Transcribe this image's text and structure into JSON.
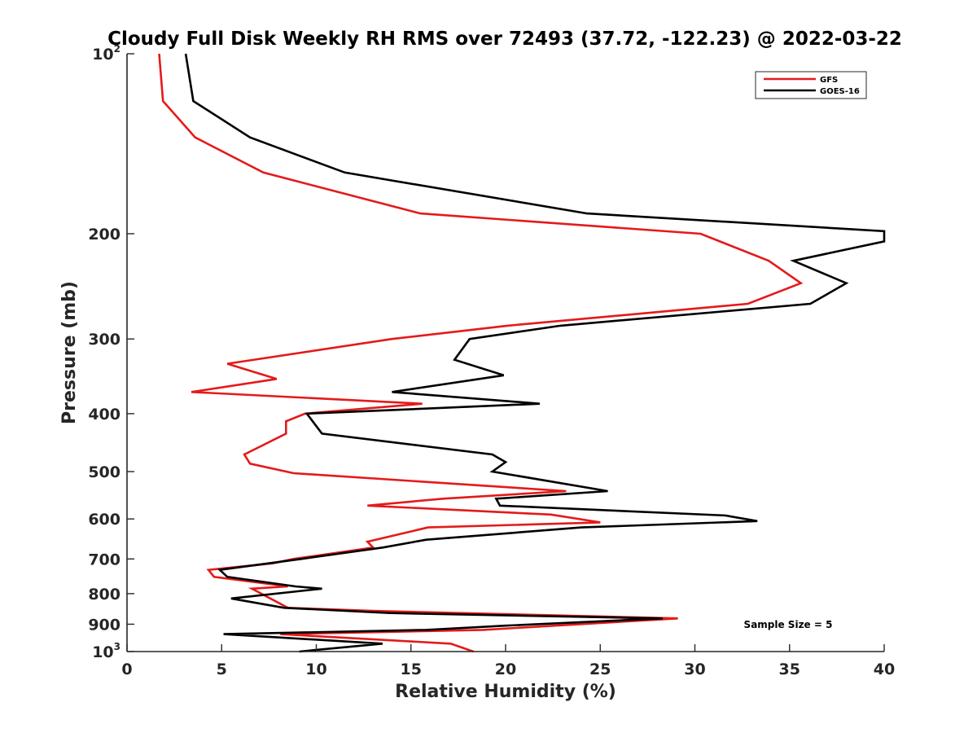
{
  "chart_data": {
    "type": "line",
    "title": "Cloudy Full Disk Weekly RH RMS over 72493 (37.72, -122.23) @ 2022-03-22",
    "xlabel": "Relative Humidity (%)",
    "ylabel": "Pressure (mb)",
    "xlim": [
      0,
      40
    ],
    "ylim": [
      1000,
      100
    ],
    "yscale": "log",
    "x_ticks": [
      0,
      5,
      10,
      15,
      20,
      25,
      30,
      35,
      40
    ],
    "y_ticks": [
      {
        "value": 100,
        "base": "10",
        "exp": "2"
      },
      {
        "value": 200,
        "label": "200"
      },
      {
        "value": 300,
        "label": "300"
      },
      {
        "value": 400,
        "label": "400"
      },
      {
        "value": 500,
        "label": "500"
      },
      {
        "value": 600,
        "label": "600"
      },
      {
        "value": 700,
        "label": "700"
      },
      {
        "value": 800,
        "label": "800"
      },
      {
        "value": 900,
        "label": "900"
      },
      {
        "value": 1000,
        "base": "10",
        "exp": "3"
      }
    ],
    "grid": false,
    "legend_position": "top-right",
    "annotation": "Sample Size = 5",
    "series": [
      {
        "name": "GFS",
        "color": "#e41a1a",
        "points": [
          [
            1.7,
            100
          ],
          [
            1.9,
            120
          ],
          [
            3.6,
            138
          ],
          [
            7.2,
            158
          ],
          [
            15.5,
            185
          ],
          [
            30.3,
            200
          ],
          [
            33.9,
            222
          ],
          [
            35.6,
            242
          ],
          [
            32.8,
            262
          ],
          [
            20.1,
            285
          ],
          [
            14.0,
            300
          ],
          [
            5.3,
            330
          ],
          [
            7.9,
            350
          ],
          [
            3.4,
            368
          ],
          [
            15.6,
            385
          ],
          [
            9.4,
            400
          ],
          [
            8.4,
            412
          ],
          [
            8.4,
            432
          ],
          [
            6.2,
            468
          ],
          [
            6.5,
            485
          ],
          [
            8.8,
            503
          ],
          [
            23.2,
            539
          ],
          [
            16.7,
            555
          ],
          [
            12.7,
            570
          ],
          [
            22.4,
            590
          ],
          [
            25.0,
            608
          ],
          [
            15.9,
            620
          ],
          [
            12.7,
            655
          ],
          [
            13.0,
            670
          ],
          [
            8.8,
            700
          ],
          [
            7.7,
            712
          ],
          [
            4.3,
            730
          ],
          [
            4.6,
            750
          ],
          [
            8.5,
            778
          ],
          [
            6.6,
            785
          ],
          [
            8.5,
            845
          ],
          [
            13.0,
            855
          ],
          [
            29.1,
            880
          ],
          [
            18.8,
            920
          ],
          [
            8.1,
            935
          ],
          [
            17.1,
            970
          ],
          [
            18.3,
            1000
          ]
        ]
      },
      {
        "name": "GOES-16",
        "color": "#000000",
        "points": [
          [
            3.1,
            100
          ],
          [
            3.5,
            120
          ],
          [
            6.5,
            138
          ],
          [
            11.5,
            158
          ],
          [
            24.3,
            185
          ],
          [
            40.0,
            198
          ],
          [
            40.0,
            206
          ],
          [
            35.2,
            222
          ],
          [
            38.0,
            242
          ],
          [
            36.1,
            262
          ],
          [
            22.9,
            285
          ],
          [
            18.1,
            300
          ],
          [
            17.3,
            325
          ],
          [
            19.9,
            345
          ],
          [
            14.0,
            368
          ],
          [
            21.8,
            385
          ],
          [
            9.5,
            400
          ],
          [
            10.3,
            432
          ],
          [
            19.3,
            468
          ],
          [
            20.0,
            482
          ],
          [
            19.3,
            500
          ],
          [
            25.4,
            539
          ],
          [
            19.5,
            555
          ],
          [
            19.7,
            570
          ],
          [
            31.6,
            592
          ],
          [
            33.3,
            605
          ],
          [
            24.0,
            620
          ],
          [
            15.8,
            650
          ],
          [
            13.5,
            670
          ],
          [
            9.2,
            700
          ],
          [
            4.9,
            730
          ],
          [
            5.3,
            750
          ],
          [
            8.9,
            778
          ],
          [
            10.3,
            785
          ],
          [
            5.5,
            815
          ],
          [
            8.3,
            845
          ],
          [
            13.9,
            862
          ],
          [
            28.3,
            880
          ],
          [
            20.0,
            905
          ],
          [
            15.8,
            920
          ],
          [
            5.1,
            935
          ],
          [
            13.5,
            970
          ],
          [
            9.1,
            1000
          ]
        ]
      }
    ]
  }
}
